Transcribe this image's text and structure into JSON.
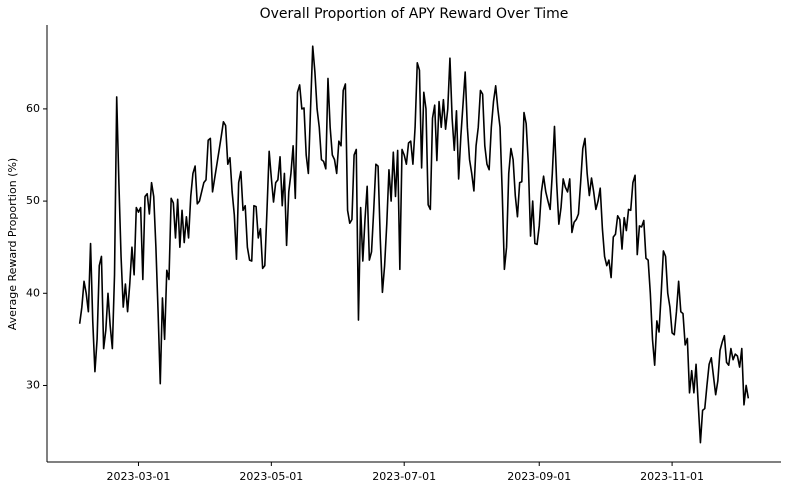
{
  "chart_data": {
    "type": "line",
    "title": "Overall Proportion of APY Reward Over Time",
    "ylabel": "Average Reward Proportion (%)",
    "x": [
      "2023-02-02",
      "2023-02-03",
      "2023-02-04",
      "2023-02-05",
      "2023-02-06",
      "2023-02-07",
      "2023-02-08",
      "2023-02-09",
      "2023-02-10",
      "2023-02-11",
      "2023-02-12",
      "2023-02-13",
      "2023-02-14",
      "2023-02-15",
      "2023-02-16",
      "2023-02-17",
      "2023-02-18",
      "2023-02-19",
      "2023-02-20",
      "2023-02-21",
      "2023-02-22",
      "2023-02-23",
      "2023-02-24",
      "2023-02-25",
      "2023-02-26",
      "2023-02-27",
      "2023-02-28",
      "2023-03-01",
      "2023-03-02",
      "2023-03-03",
      "2023-03-04",
      "2023-03-05",
      "2023-03-06",
      "2023-03-07",
      "2023-03-08",
      "2023-03-09",
      "2023-03-10",
      "2023-03-11",
      "2023-03-12",
      "2023-03-13",
      "2023-03-14",
      "2023-03-15",
      "2023-03-16",
      "2023-03-17",
      "2023-03-18",
      "2023-03-19",
      "2023-03-20",
      "2023-03-21",
      "2023-03-22",
      "2023-03-23",
      "2023-03-24",
      "2023-03-25",
      "2023-03-26",
      "2023-03-27",
      "2023-03-28",
      "2023-03-29",
      "2023-03-30",
      "2023-03-31",
      "2023-04-01",
      "2023-04-02",
      "2023-04-03",
      "2023-04-04",
      "2023-04-05",
      "2023-04-06",
      "2023-04-07",
      "2023-04-08",
      "2023-04-09",
      "2023-04-10",
      "2023-04-11",
      "2023-04-12",
      "2023-04-13",
      "2023-04-14",
      "2023-04-15",
      "2023-04-16",
      "2023-04-17",
      "2023-04-18",
      "2023-04-19",
      "2023-04-20",
      "2023-04-21",
      "2023-04-22",
      "2023-04-23",
      "2023-04-24",
      "2023-04-25",
      "2023-04-26",
      "2023-04-27",
      "2023-04-28",
      "2023-04-29",
      "2023-04-30",
      "2023-05-01",
      "2023-05-02",
      "2023-05-03",
      "2023-05-04",
      "2023-05-05",
      "2023-05-06",
      "2023-05-07",
      "2023-05-08",
      "2023-05-09",
      "2023-05-10",
      "2023-05-11",
      "2023-05-12",
      "2023-05-13",
      "2023-05-14",
      "2023-05-15",
      "2023-05-16",
      "2023-05-17",
      "2023-05-18",
      "2023-05-19",
      "2023-05-20",
      "2023-05-21",
      "2023-05-22",
      "2023-05-23",
      "2023-05-24",
      "2023-05-25",
      "2023-05-26",
      "2023-05-27",
      "2023-05-28",
      "2023-05-29",
      "2023-05-30",
      "2023-05-31",
      "2023-06-01",
      "2023-06-02",
      "2023-06-03",
      "2023-06-04",
      "2023-06-05",
      "2023-06-06",
      "2023-06-07",
      "2023-06-08",
      "2023-06-09",
      "2023-06-10",
      "2023-06-11",
      "2023-06-12",
      "2023-06-13",
      "2023-06-14",
      "2023-06-15",
      "2023-06-16",
      "2023-06-17",
      "2023-06-18",
      "2023-06-19",
      "2023-06-20",
      "2023-06-21",
      "2023-06-22",
      "2023-06-23",
      "2023-06-24",
      "2023-06-25",
      "2023-06-26",
      "2023-06-27",
      "2023-06-28",
      "2023-06-29",
      "2023-06-30",
      "2023-07-01",
      "2023-07-02",
      "2023-07-03",
      "2023-07-04",
      "2023-07-05",
      "2023-07-06",
      "2023-07-07",
      "2023-07-08",
      "2023-07-09",
      "2023-07-10",
      "2023-07-11",
      "2023-07-12",
      "2023-07-13",
      "2023-07-14",
      "2023-07-15",
      "2023-07-16",
      "2023-07-17",
      "2023-07-18",
      "2023-07-19",
      "2023-07-20",
      "2023-07-21",
      "2023-07-22",
      "2023-07-23",
      "2023-07-24",
      "2023-07-25",
      "2023-07-26",
      "2023-07-27",
      "2023-07-28",
      "2023-07-29",
      "2023-07-30",
      "2023-07-31",
      "2023-08-01",
      "2023-08-02",
      "2023-08-03",
      "2023-08-04",
      "2023-08-05",
      "2023-08-06",
      "2023-08-07",
      "2023-08-08",
      "2023-08-09",
      "2023-08-10",
      "2023-08-11",
      "2023-08-12",
      "2023-08-13",
      "2023-08-14",
      "2023-08-15",
      "2023-08-16",
      "2023-08-17",
      "2023-08-18",
      "2023-08-19",
      "2023-08-20",
      "2023-08-21",
      "2023-08-22",
      "2023-08-23",
      "2023-08-24",
      "2023-08-25",
      "2023-08-26",
      "2023-08-27",
      "2023-08-28",
      "2023-08-29",
      "2023-08-30",
      "2023-08-31",
      "2023-09-01",
      "2023-09-02",
      "2023-09-03",
      "2023-09-04",
      "2023-09-05",
      "2023-09-06",
      "2023-09-07",
      "2023-09-08",
      "2023-09-09",
      "2023-09-10",
      "2023-09-11",
      "2023-09-12",
      "2023-09-13",
      "2023-09-14",
      "2023-09-15",
      "2023-09-16",
      "2023-09-17",
      "2023-09-18",
      "2023-09-19",
      "2023-09-20",
      "2023-09-21",
      "2023-09-22",
      "2023-09-23",
      "2023-09-24",
      "2023-09-25",
      "2023-09-26",
      "2023-09-27",
      "2023-09-28",
      "2023-09-29",
      "2023-09-30",
      "2023-10-01",
      "2023-10-02",
      "2023-10-03",
      "2023-10-04",
      "2023-10-05",
      "2023-10-06",
      "2023-10-07",
      "2023-10-08",
      "2023-10-09",
      "2023-10-10",
      "2023-10-11",
      "2023-10-12",
      "2023-10-13",
      "2023-10-14",
      "2023-10-15",
      "2023-10-16",
      "2023-10-17",
      "2023-10-18",
      "2023-10-19",
      "2023-10-20",
      "2023-10-21",
      "2023-10-22",
      "2023-10-23",
      "2023-10-24",
      "2023-10-25",
      "2023-10-26",
      "2023-10-27",
      "2023-10-28",
      "2023-10-29",
      "2023-10-30",
      "2023-10-31",
      "2023-11-01",
      "2023-11-02",
      "2023-11-03",
      "2023-11-04",
      "2023-11-05",
      "2023-11-06",
      "2023-11-07",
      "2023-11-08",
      "2023-11-09",
      "2023-11-10",
      "2023-11-11",
      "2023-11-12",
      "2023-11-13",
      "2023-11-14",
      "2023-11-15",
      "2023-11-16",
      "2023-11-17",
      "2023-11-18",
      "2023-11-19",
      "2023-11-20",
      "2023-11-21",
      "2023-11-22",
      "2023-11-23",
      "2023-11-24",
      "2023-11-25",
      "2023-11-26",
      "2023-11-27",
      "2023-11-28",
      "2023-11-29",
      "2023-11-30",
      "2023-12-01",
      "2023-12-02",
      "2023-12-03",
      "2023-12-04",
      "2023-12-05",
      "2023-12-06"
    ],
    "values": [
      36.7,
      38.5,
      41.3,
      40,
      38,
      45.4,
      37,
      31.5,
      35,
      43,
      44,
      34,
      36,
      40,
      36.5,
      34,
      42,
      61.3,
      52,
      44,
      38.5,
      41,
      38,
      41,
      45,
      42,
      49.3,
      48.8,
      49.3,
      41.5,
      50.5,
      50.8,
      48.6,
      52,
      50.5,
      45,
      38,
      30.2,
      39.5,
      35,
      42.5,
      41.5,
      50.3,
      49.8,
      46,
      50.2,
      45,
      49,
      45.5,
      48.3,
      46,
      50.5,
      53,
      53.8,
      49.7,
      50,
      51,
      52,
      52.3,
      56.6,
      56.8,
      51,
      52.5,
      54,
      55.5,
      57,
      58.6,
      58.2,
      54,
      54.7,
      51,
      48.5,
      43.7,
      52,
      53.2,
      49,
      49.5,
      45,
      43.6,
      43.5,
      49.5,
      49.4,
      46,
      47,
      42.7,
      43,
      49,
      55.4,
      52.5,
      49.9,
      52,
      52.3,
      54.8,
      49.5,
      53,
      45.2,
      51,
      53,
      56,
      50.3,
      61.8,
      62.6,
      60,
      60.1,
      55,
      53,
      60,
      66.8,
      64,
      60,
      58,
      54.5,
      54.3,
      53.5,
      63.3,
      58,
      55,
      54.5,
      53,
      56.5,
      56,
      62,
      62.7,
      49,
      47.6,
      48,
      55,
      55.6,
      37.1,
      49.3,
      43.5,
      48,
      51.6,
      43.6,
      44.5,
      49,
      54,
      53.8,
      46,
      40.1,
      43,
      47.5,
      53.4,
      50,
      55.3,
      50.5,
      55.5,
      42.6,
      55.6,
      55,
      54,
      56.3,
      56.5,
      54,
      58,
      65,
      64.2,
      53.6,
      61.8,
      60,
      49.6,
      49.1,
      59,
      60.4,
      54.4,
      60.8,
      58,
      61,
      57.8,
      60,
      65.5,
      59,
      55.5,
      59.8,
      52.4,
      57,
      60.5,
      64,
      58,
      54.5,
      53,
      51.1,
      56,
      58,
      62,
      61.6,
      56,
      54,
      53.4,
      58,
      60.8,
      62.5,
      60,
      58,
      51,
      42.6,
      45,
      53,
      55.7,
      54.5,
      50.6,
      48.3,
      52,
      52.1,
      59.6,
      58.4,
      54,
      46.2,
      50,
      45.4,
      45.3,
      47.3,
      51,
      52.7,
      51,
      50,
      49.1,
      53,
      58.1,
      52,
      47.5,
      49.3,
      52.4,
      51.5,
      51,
      52.4,
      46.6,
      47.7,
      48,
      48.6,
      52,
      55.7,
      56.8,
      53,
      50.6,
      52.5,
      51,
      49.1,
      50,
      51.4,
      47,
      44,
      43,
      43.6,
      41.7,
      46.1,
      46.4,
      48.4,
      48,
      44.8,
      48.2,
      46.8,
      49.1,
      49,
      52,
      52.8,
      44.2,
      47.3,
      47.2,
      47.9,
      43.8,
      43.6,
      40,
      35,
      32.2,
      37,
      35.8,
      40,
      44.6,
      44,
      40,
      38.5,
      35.7,
      35.5,
      38,
      41.3,
      38,
      37.8,
      34.4,
      35.1,
      29.2,
      31.6,
      29.2,
      32.3,
      28,
      23.8,
      27.3,
      27.5,
      30,
      32.3,
      33,
      31,
      29,
      30.5,
      33.8,
      34.7,
      35.4,
      32.5,
      32.2,
      34,
      32.8,
      33.4,
      33.2,
      32,
      34,
      27.9,
      30,
      28.6
    ],
    "color": "#000000",
    "xlim": [
      "2023-01-18",
      "2023-12-21"
    ],
    "xticks": [
      "2023-03-01",
      "2023-05-01",
      "2023-07-01",
      "2023-09-01",
      "2023-11-01"
    ],
    "ylim": [
      21.7,
      69.1
    ],
    "yticks": [
      30,
      40,
      50,
      60
    ],
    "grid": false
  }
}
